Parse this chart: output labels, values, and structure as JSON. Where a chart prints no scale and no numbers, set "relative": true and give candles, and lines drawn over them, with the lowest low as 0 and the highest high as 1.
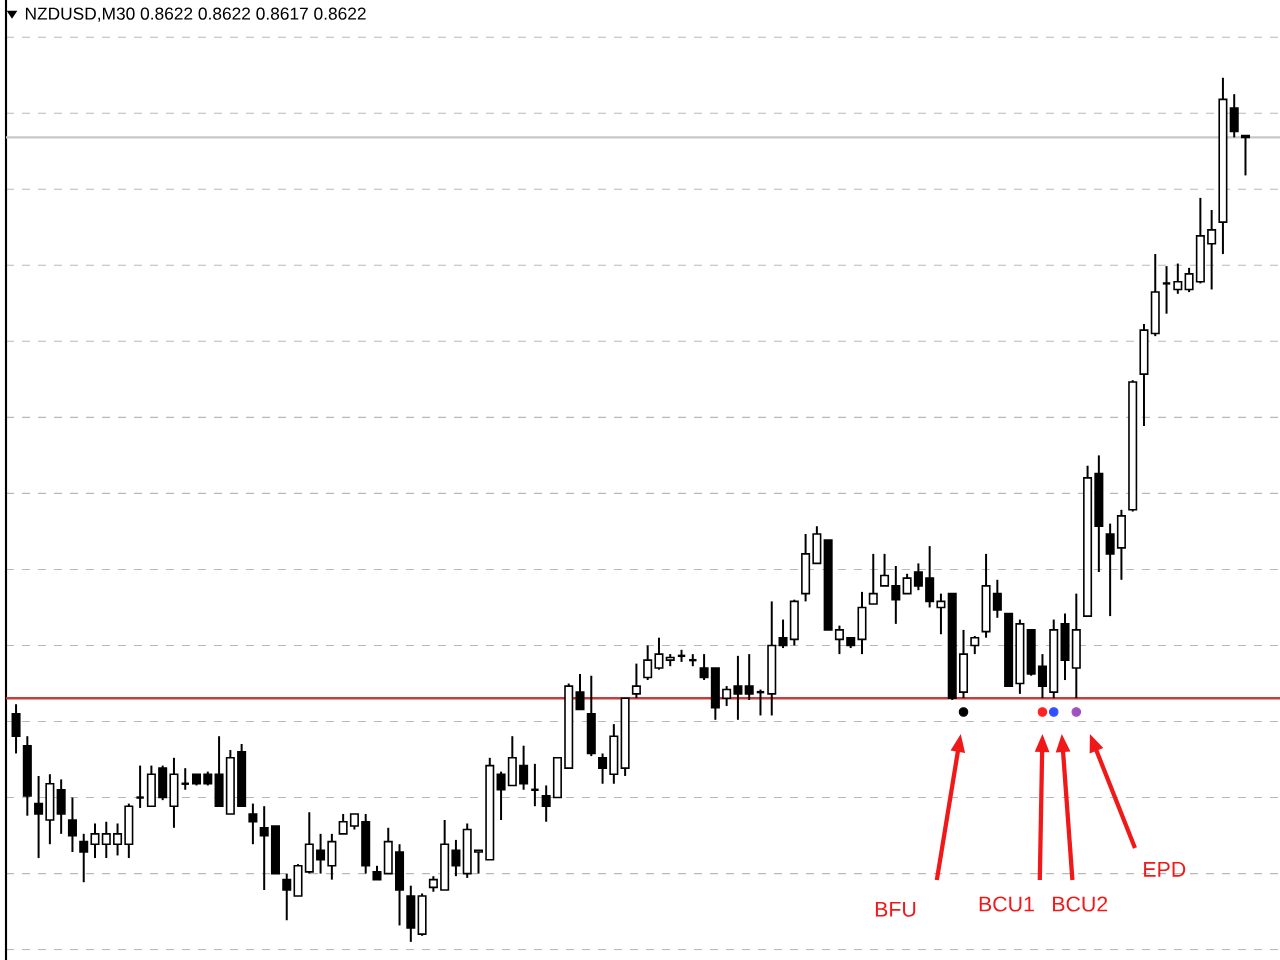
{
  "chart_data": {
    "type": "candlestick",
    "title": "NZDUSD,M30 0.8622 0.8622 0.8617 0.8622",
    "relative": true,
    "grid": true,
    "categories": [
      null,
      null,
      null,
      null,
      null,
      null,
      null,
      null,
      null,
      null,
      null,
      null,
      null,
      null,
      null,
      null,
      null,
      null,
      null,
      null,
      null,
      null,
      null,
      null,
      null,
      null,
      null,
      null,
      null,
      null,
      null,
      null,
      null,
      null,
      null,
      null,
      null,
      null,
      null,
      null,
      null,
      null,
      null,
      null,
      null,
      null,
      null,
      null,
      null,
      null,
      null,
      null,
      null,
      null,
      null,
      null,
      null,
      null,
      null,
      null,
      null,
      null,
      null,
      null,
      null,
      null,
      null,
      null,
      null,
      null,
      null,
      null,
      null,
      null,
      null,
      null,
      null,
      null,
      null,
      null,
      null,
      null,
      null,
      null,
      null,
      null,
      null,
      null,
      null,
      null,
      null,
      null,
      null,
      null,
      null,
      null,
      null,
      null,
      null,
      null,
      null,
      null,
      null,
      null,
      null,
      null,
      null,
      null,
      null,
      null
    ],
    "ohlc": [
      [
        0.264,
        0.275,
        0.218,
        0.238
      ],
      [
        0.227,
        0.238,
        0.146,
        0.169
      ],
      [
        0.16,
        0.192,
        0.097,
        0.148
      ],
      [
        0.141,
        0.194,
        0.113,
        0.183
      ],
      [
        0.176,
        0.188,
        0.125,
        0.148
      ],
      [
        0.141,
        0.167,
        0.104,
        0.123
      ],
      [
        0.116,
        0.125,
        0.069,
        0.104
      ],
      [
        0.113,
        0.137,
        0.097,
        0.125
      ],
      [
        0.113,
        0.139,
        0.097,
        0.125
      ],
      [
        0.113,
        0.137,
        0.1,
        0.125
      ],
      [
        0.113,
        0.16,
        0.097,
        0.157
      ],
      [
        0.167,
        0.204,
        0.155,
        0.167
      ],
      [
        0.157,
        0.204,
        0.157,
        0.194
      ],
      [
        0.201,
        0.204,
        0.164,
        0.167
      ],
      [
        0.157,
        0.213,
        0.132,
        0.194
      ],
      [
        0.183,
        0.201,
        0.176,
        0.183
      ],
      [
        0.194,
        0.194,
        0.181,
        0.183
      ],
      [
        0.194,
        0.197,
        0.181,
        0.183
      ],
      [
        0.194,
        0.238,
        0.157,
        0.157
      ],
      [
        0.148,
        0.222,
        0.148,
        0.213
      ],
      [
        0.22,
        0.229,
        0.157,
        0.157
      ],
      [
        0.148,
        0.16,
        0.113,
        0.139
      ],
      [
        0.132,
        0.157,
        0.06,
        0.123
      ],
      [
        0.134,
        0.134,
        0.079,
        0.079
      ],
      [
        0.072,
        0.079,
        0.025,
        0.06
      ],
      [
        0.053,
        0.09,
        0.053,
        0.088
      ],
      [
        0.081,
        0.15,
        0.079,
        0.113
      ],
      [
        0.106,
        0.125,
        0.079,
        0.095
      ],
      [
        0.088,
        0.125,
        0.072,
        0.116
      ],
      [
        0.125,
        0.148,
        0.125,
        0.139
      ],
      [
        0.134,
        0.148,
        0.13,
        0.148
      ],
      [
        0.139,
        0.148,
        0.079,
        0.088
      ],
      [
        0.081,
        0.088,
        0.072,
        0.072
      ],
      [
        0.079,
        0.132,
        0.079,
        0.116
      ],
      [
        0.104,
        0.113,
        0.019,
        0.06
      ],
      [
        0.053,
        0.065,
        0,
        0.016
      ],
      [
        0.009,
        0.056,
        0.007,
        0.053
      ],
      [
        0.063,
        0.076,
        0.058,
        0.072
      ],
      [
        0.06,
        0.141,
        0.06,
        0.113
      ],
      [
        0.106,
        0.118,
        0.076,
        0.088
      ],
      [
        0.079,
        0.137,
        0.074,
        0.13
      ],
      [
        0.104,
        0.106,
        0.079,
        0.106
      ],
      [
        0.095,
        0.213,
        0.095,
        0.204
      ],
      [
        0.194,
        0.197,
        0.141,
        0.176
      ],
      [
        0.181,
        0.238,
        0.181,
        0.213
      ],
      [
        0.204,
        0.227,
        0.176,
        0.183
      ],
      [
        0.176,
        0.206,
        0.157,
        0.176
      ],
      [
        0.169,
        0.181,
        0.139,
        0.157
      ],
      [
        0.167,
        0.213,
        0.167,
        0.213
      ],
      [
        0.201,
        0.299,
        0.201,
        0.296
      ],
      [
        0.289,
        0.31,
        0.269,
        0.269
      ],
      [
        0.264,
        0.308,
        0.215,
        0.218
      ],
      [
        0.213,
        0.218,
        0.183,
        0.201
      ],
      [
        0.194,
        0.252,
        0.183,
        0.238
      ],
      [
        0.201,
        0.282,
        0.192,
        0.282
      ],
      [
        0.287,
        0.322,
        0.282,
        0.296
      ],
      [
        0.306,
        0.343,
        0.303,
        0.326
      ],
      [
        0.317,
        0.352,
        0.315,
        0.333
      ],
      [
        0.326,
        0.333,
        0.319,
        0.329
      ],
      [
        0.331,
        0.338,
        0.324,
        0.331
      ],
      [
        0.326,
        0.333,
        0.319,
        0.326
      ],
      [
        0.317,
        0.333,
        0.303,
        0.306
      ],
      [
        0.317,
        0.317,
        0.257,
        0.271
      ],
      [
        0.282,
        0.296,
        0.273,
        0.292
      ],
      [
        0.296,
        0.331,
        0.257,
        0.287
      ],
      [
        0.296,
        0.333,
        0.28,
        0.287
      ],
      [
        0.289,
        0.292,
        0.262,
        0.289
      ],
      [
        0.287,
        0.394,
        0.262,
        0.343
      ],
      [
        0.352,
        0.373,
        0.34,
        0.343
      ],
      [
        0.35,
        0.396,
        0.343,
        0.394
      ],
      [
        0.403,
        0.472,
        0.394,
        0.449
      ],
      [
        0.438,
        0.481,
        0.438,
        0.472
      ],
      [
        0.465,
        0.465,
        0.361,
        0.361
      ],
      [
        0.35,
        0.366,
        0.333,
        0.361
      ],
      [
        0.352,
        0.352,
        0.34,
        0.343
      ],
      [
        0.35,
        0.405,
        0.333,
        0.387
      ],
      [
        0.391,
        0.449,
        0.391,
        0.403
      ],
      [
        0.412,
        0.449,
        0.412,
        0.424
      ],
      [
        0.412,
        0.435,
        0.368,
        0.396
      ],
      [
        0.403,
        0.426,
        0.403,
        0.421
      ],
      [
        0.428,
        0.438,
        0.407,
        0.412
      ],
      [
        0.421,
        0.458,
        0.387,
        0.394
      ],
      [
        0.387,
        0.403,
        0.356,
        0.394
      ],
      [
        0.403,
        0.403,
        0.28,
        0.282
      ],
      [
        0.289,
        0.361,
        0.282,
        0.333
      ],
      [
        0.343,
        0.354,
        0.333,
        0.352
      ],
      [
        0.359,
        0.449,
        0.352,
        0.412
      ],
      [
        0.403,
        0.419,
        0.375,
        0.384
      ],
      [
        0.38,
        0.38,
        0.296,
        0.296
      ],
      [
        0.299,
        0.373,
        0.287,
        0.368
      ],
      [
        0.361,
        0.361,
        0.308,
        0.31
      ],
      [
        0.319,
        0.333,
        0.282,
        0.296
      ],
      [
        0.289,
        0.373,
        0.282,
        0.361
      ],
      [
        0.368,
        0.38,
        0.303,
        0.326
      ],
      [
        0.317,
        0.403,
        0.282,
        0.361
      ],
      [
        0.377,
        0.551,
        0.377,
        0.537
      ],
      [
        0.542,
        0.563,
        0.428,
        0.481
      ],
      [
        0.472,
        0.484,
        0.377,
        0.449
      ],
      [
        0.456,
        0.5,
        0.419,
        0.493
      ],
      [
        0.5,
        0.65,
        0.498,
        0.648
      ],
      [
        0.657,
        0.715,
        0.597,
        0.708
      ],
      [
        0.704,
        0.796,
        0.701,
        0.752
      ],
      [
        0.762,
        0.782,
        0.727,
        0.762
      ],
      [
        0.755,
        0.785,
        0.75,
        0.764
      ],
      [
        0.755,
        0.78,
        0.752,
        0.773
      ],
      [
        0.764,
        0.861,
        0.762,
        0.817
      ],
      [
        0.808,
        0.847,
        0.755,
        0.824
      ],
      [
        0.833,
        1,
        0.796,
        0.975
      ],
      [
        0.965,
        0.981,
        0.931,
        0.938
      ],
      [
        0.931,
        0.933,
        0.887,
        0.933
      ]
    ],
    "series": [
      {
        "type": "scatter",
        "marker": "circle",
        "values": [
          null,
          null,
          null,
          null,
          null,
          null,
          null,
          null,
          null,
          null,
          null,
          null,
          null,
          null,
          null,
          null,
          null,
          null,
          null,
          null,
          null,
          null,
          null,
          null,
          null,
          null,
          null,
          null,
          null,
          null,
          null,
          null,
          null,
          null,
          null,
          null,
          null,
          null,
          null,
          null,
          null,
          null,
          null,
          null,
          null,
          null,
          null,
          null,
          null,
          null,
          null,
          null,
          null,
          null,
          null,
          null,
          null,
          null,
          null,
          null,
          null,
          null,
          null,
          null,
          null,
          null,
          null,
          null,
          null,
          null,
          null,
          null,
          null,
          null,
          null,
          null,
          null,
          null,
          null,
          null,
          null,
          null,
          null,
          null,
          0.266,
          null,
          null,
          null,
          null,
          null,
          null,
          0.266,
          0.266,
          null,
          0.266,
          null,
          null,
          null,
          null,
          null,
          null,
          null,
          null,
          null,
          null,
          null,
          null,
          null,
          null,
          null
        ],
        "colors": [
          null,
          null,
          null,
          null,
          null,
          null,
          null,
          null,
          null,
          null,
          null,
          null,
          null,
          null,
          null,
          null,
          null,
          null,
          null,
          null,
          null,
          null,
          null,
          null,
          null,
          null,
          null,
          null,
          null,
          null,
          null,
          null,
          null,
          null,
          null,
          null,
          null,
          null,
          null,
          null,
          null,
          null,
          null,
          null,
          null,
          null,
          null,
          null,
          null,
          null,
          null,
          null,
          null,
          null,
          null,
          null,
          null,
          null,
          null,
          null,
          null,
          null,
          null,
          null,
          null,
          null,
          null,
          null,
          null,
          null,
          null,
          null,
          null,
          null,
          null,
          null,
          null,
          null,
          null,
          null,
          null,
          null,
          null,
          null,
          "#000000",
          null,
          null,
          null,
          null,
          null,
          null,
          "#ff2020",
          "#3050ff",
          null,
          "#a050c0",
          null,
          null,
          null,
          null,
          null,
          null,
          null,
          null,
          null,
          null,
          null,
          null,
          null,
          null,
          null
        ]
      }
    ],
    "ref_lines": [
      {
        "axis": "y",
        "value": 0.282,
        "color": "#c83c3c"
      },
      {
        "axis": "y",
        "value": 0.931,
        "color": "#c8c8c8"
      }
    ],
    "annotations": [
      "BFU",
      "BCU1",
      "BCU2",
      "EPD"
    ]
  }
}
